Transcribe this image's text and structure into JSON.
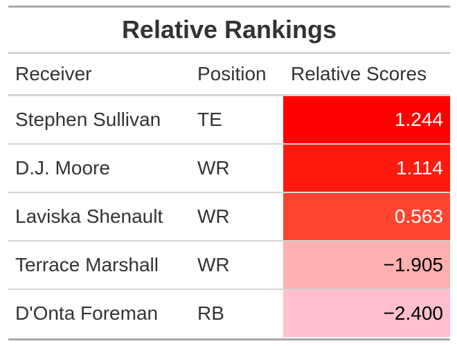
{
  "table": {
    "title": "Relative Rankings",
    "headers": {
      "receiver": "Receiver",
      "position": "Position",
      "score": "Relative Scores"
    },
    "rows": [
      {
        "receiver": "Stephen Sullivan",
        "position": "TE",
        "score": "1.244"
      },
      {
        "receiver": "D.J. Moore",
        "position": "WR",
        "score": "1.114"
      },
      {
        "receiver": "Laviska Shenault",
        "position": "WR",
        "score": "0.563"
      },
      {
        "receiver": "Terrace Marshall",
        "position": "WR",
        "score": "−1.905"
      },
      {
        "receiver": "D'Onta Foreman",
        "position": "RB",
        "score": "−2.400"
      }
    ],
    "score_fill_colors": [
      "#ff0000",
      "#ff1a10",
      "#ff4530",
      "#ffb0b0",
      "#ffc0cb"
    ],
    "score_text_colors": [
      "#ffffff",
      "#ffffff",
      "#ffffff",
      "#000000",
      "#000000"
    ]
  }
}
